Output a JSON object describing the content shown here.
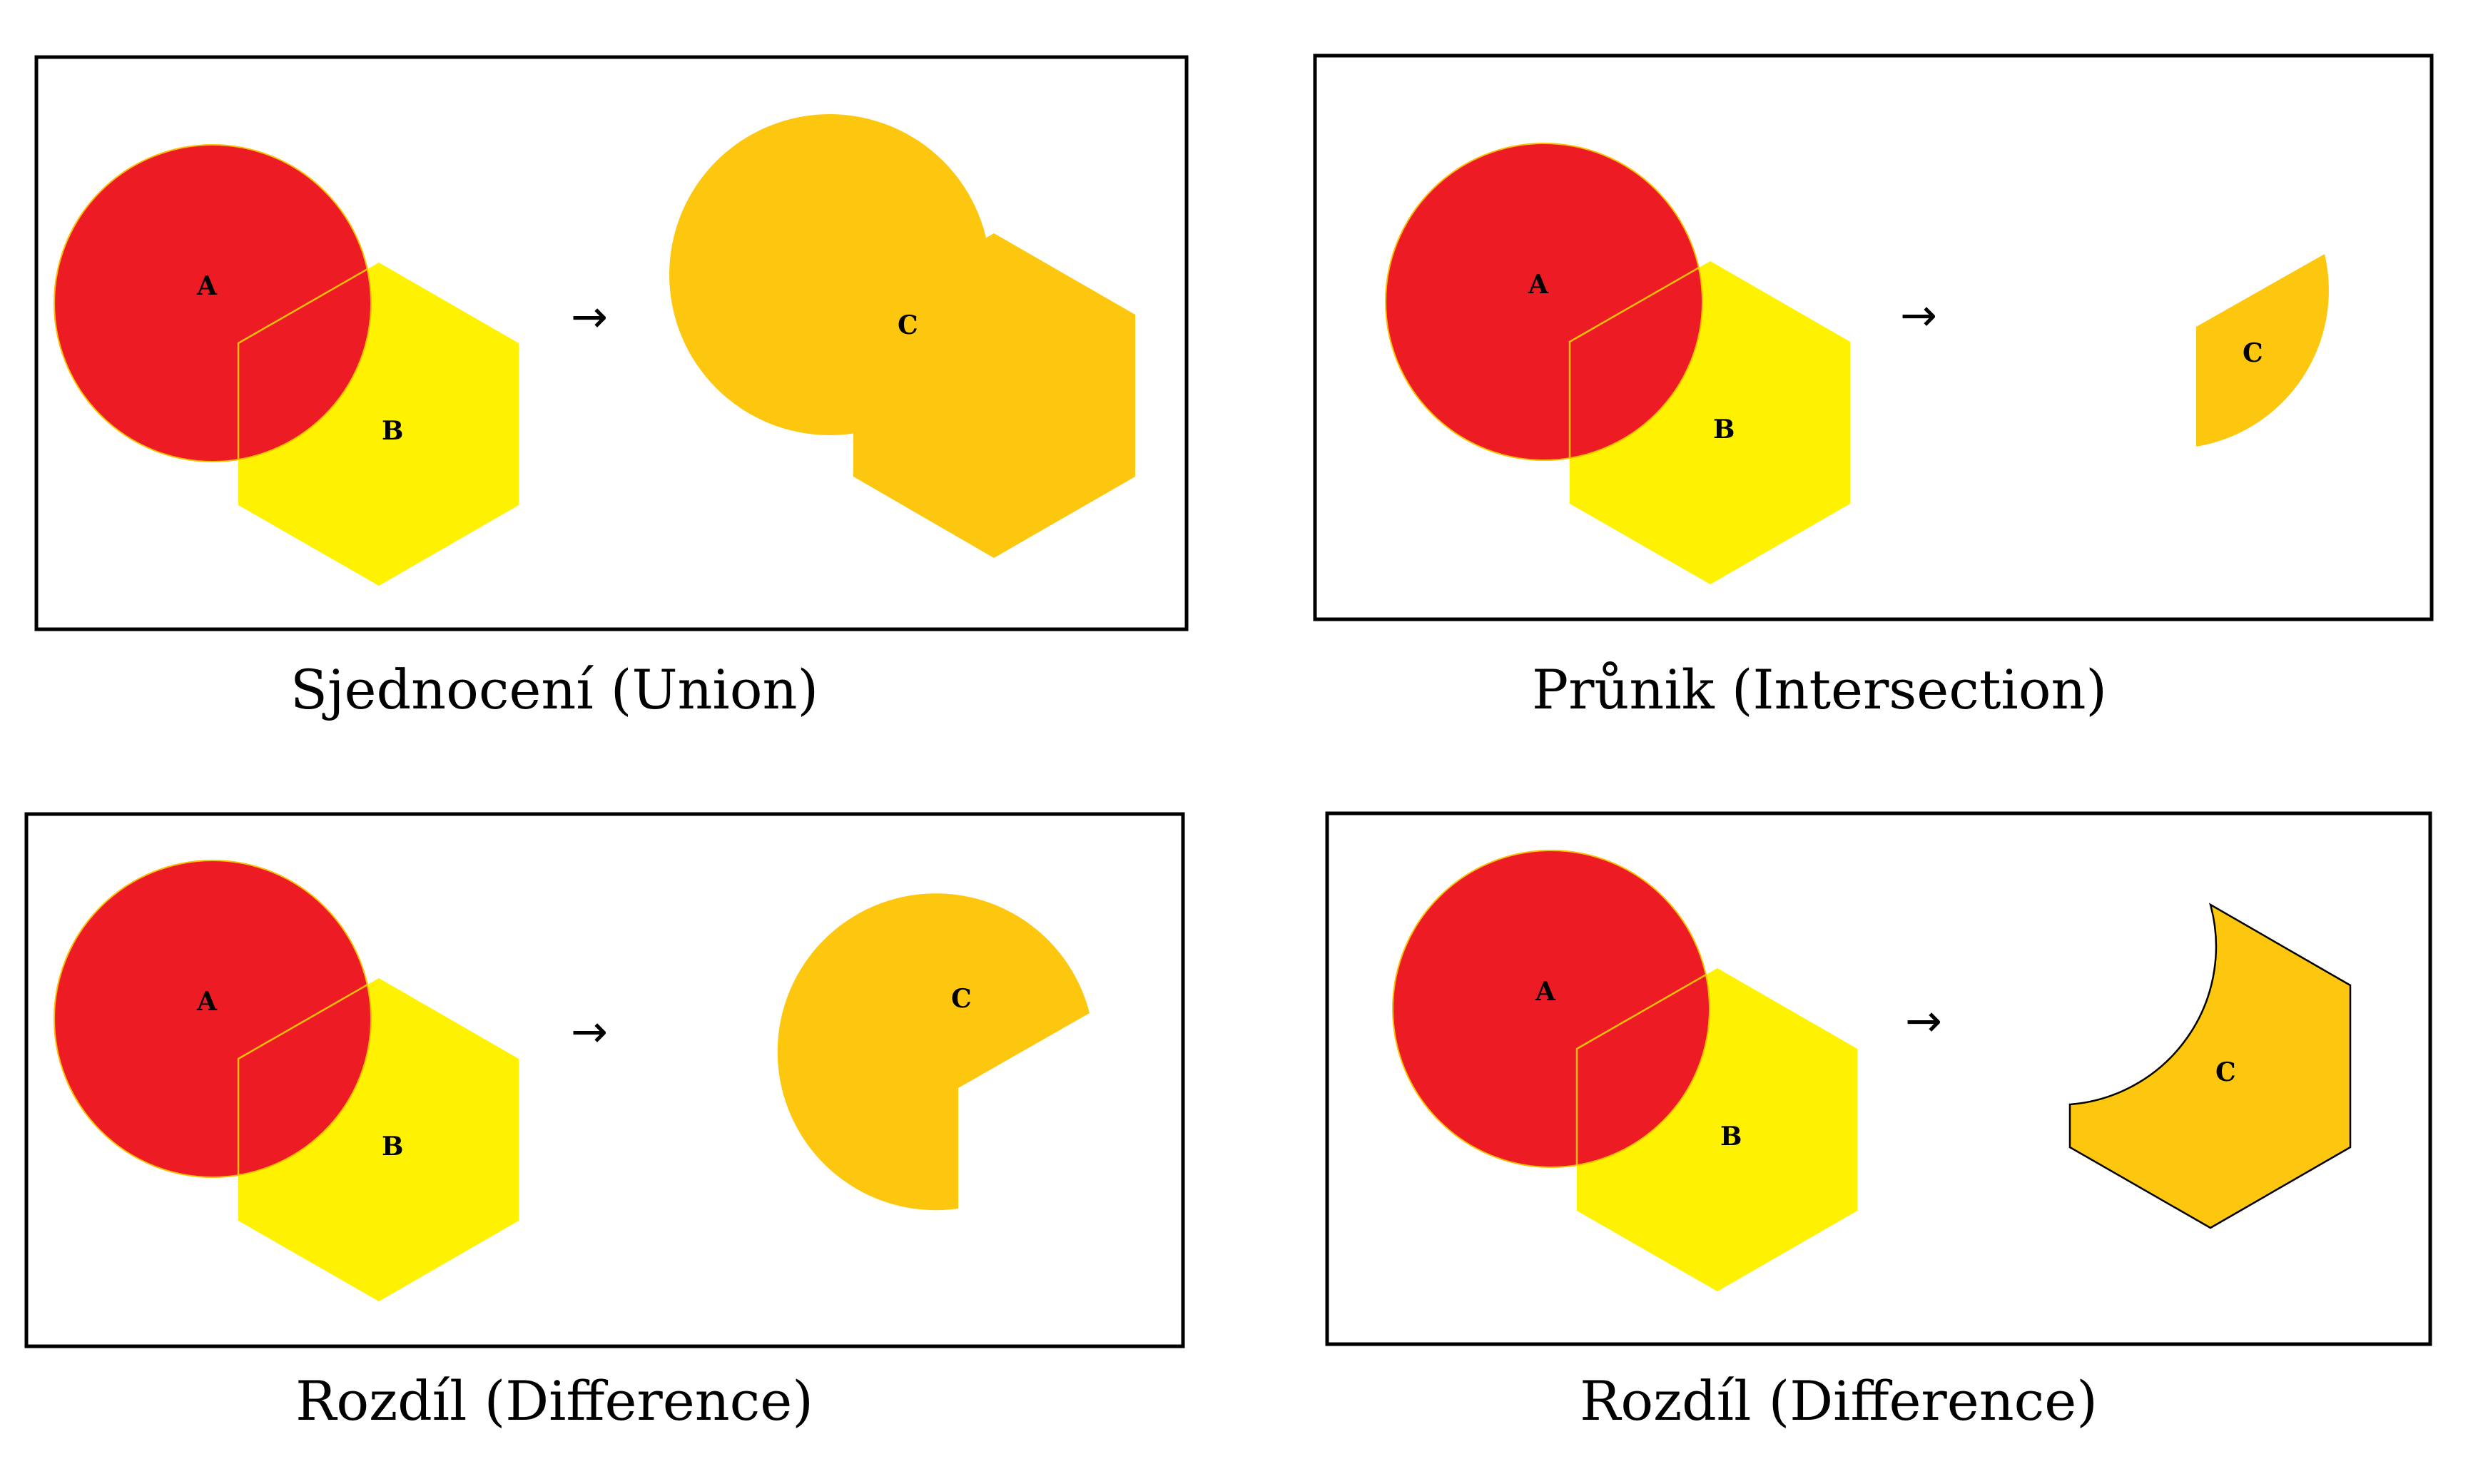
{
  "colors": {
    "shape_a": "#ed1c24",
    "shape_b": "#fff200",
    "shape_c": "#fdc70f",
    "frame": "#000000"
  },
  "shape_labels": {
    "a": "A",
    "b": "B",
    "c": "C"
  },
  "arrow_glyph": "→",
  "panels": [
    {
      "caption": "Sjednocení (Union)"
    },
    {
      "caption": "Průnik (Intersection)"
    },
    {
      "caption": "Rozdíl (Difference)"
    },
    {
      "caption": "Rozdíl (Difference)"
    }
  ]
}
